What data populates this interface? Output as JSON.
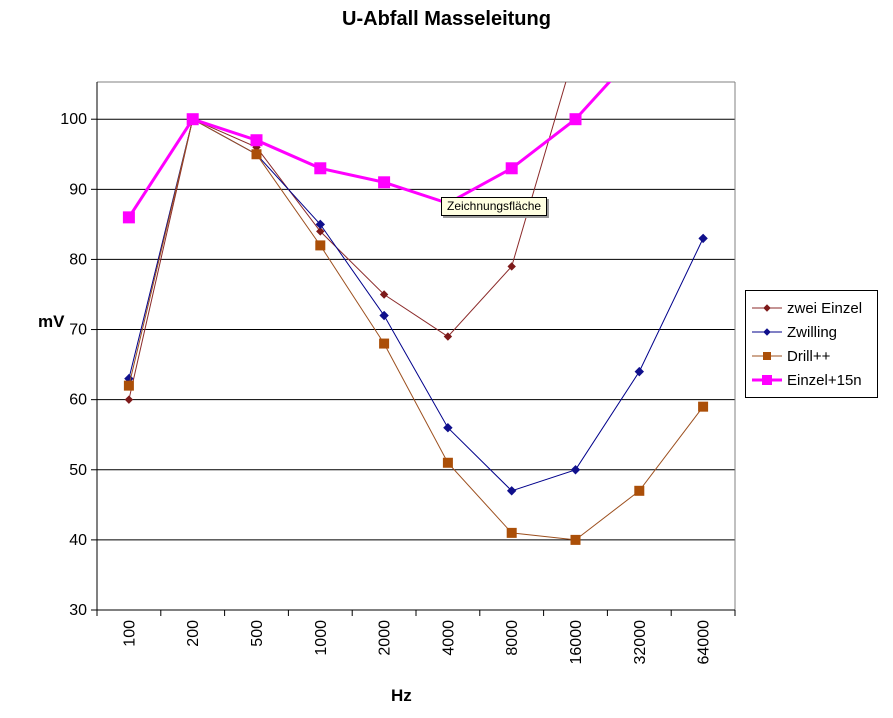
{
  "title": "U-Abfall Masseleitung",
  "tooltip": {
    "text": "Zeichnungsfläche"
  },
  "chart_data": {
    "type": "line",
    "title": "U-Abfall Masseleitung",
    "xlabel": "Hz",
    "ylabel": "mV",
    "categories": [
      "100",
      "200",
      "500",
      "1000",
      "2000",
      "4000",
      "8000",
      "16000",
      "32000",
      "64000"
    ],
    "yticks": [
      30,
      40,
      50,
      60,
      70,
      80,
      90,
      100
    ],
    "ylim": [
      30,
      105
    ],
    "grid": "horizontal-black",
    "legend_position": "right",
    "plot_border_color": "#808080",
    "gridline_color": "#000000",
    "background_color": "#ffffff",
    "series": [
      {
        "name": "zwei Einzel",
        "color": "#8b2a2a",
        "marker": "diamond",
        "marker_color": "#7e1a1a",
        "marker_size": 7,
        "line_width": 1,
        "values": [
          60,
          100,
          96,
          84,
          75,
          69,
          79,
          110,
          null,
          null
        ],
        "note": "value at 16000 is off-scale (line exits top of plot between 8000 and 16000 Hz, estimated ~110)"
      },
      {
        "name": "Zwilling",
        "color": "#00008b",
        "marker": "diamond",
        "marker_color": "#10108c",
        "marker_size": 8,
        "line_width": 1,
        "values": [
          63,
          100,
          95,
          85,
          72,
          56,
          47,
          50,
          64,
          83
        ],
        "note": "marker at 500 Hz hidden behind Drill++ square"
      },
      {
        "name": "Drill++",
        "color": "#9c4f1e",
        "marker": "square",
        "marker_color": "#ab4f08",
        "marker_size": 9,
        "line_width": 1,
        "values": [
          62,
          100,
          95,
          82,
          68,
          51,
          41,
          40,
          47,
          59
        ],
        "note": ""
      },
      {
        "name": "Einzel+15n",
        "color": "#ff00ff",
        "marker": "square",
        "marker_color": "#ff00ff",
        "marker_size": 11,
        "line_width": 3,
        "values": [
          86,
          100,
          97,
          93,
          91,
          88,
          93,
          100,
          110,
          null
        ],
        "note": "marker at 4000 Hz hidden behind tooltip; value at 32000 off-scale (line exits top of plot after 16000 Hz, estimated ~110)"
      }
    ],
    "annotations": [
      "Zeichnungsfläche tooltip shown over plot area near 4000 Hz at ~88 mV"
    ]
  }
}
